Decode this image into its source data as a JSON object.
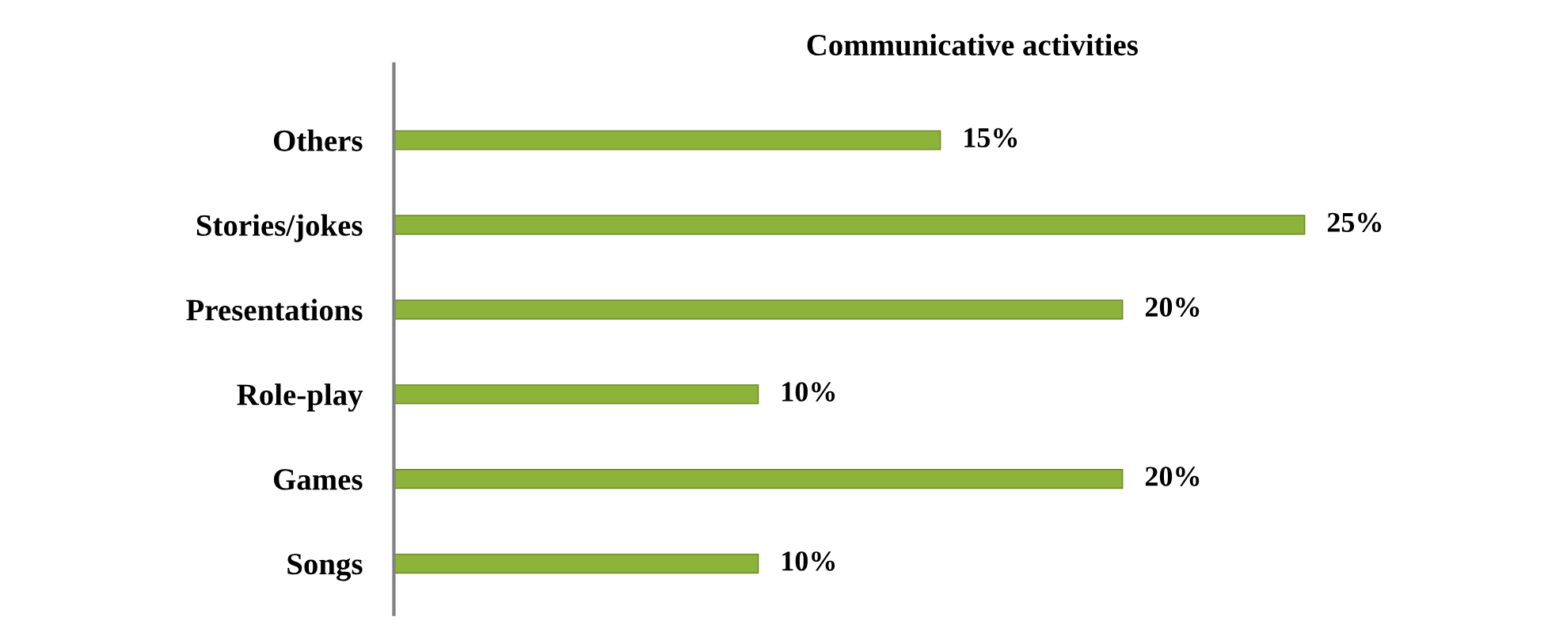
{
  "chart_data": {
    "type": "bar",
    "orientation": "horizontal",
    "title": "Communicative activities",
    "categories": [
      "Others",
      "Stories/jokes",
      "Presentations",
      "Role-play",
      "Games",
      "Songs"
    ],
    "values": [
      15,
      25,
      20,
      10,
      20,
      10
    ],
    "value_labels": [
      "15%",
      "25%",
      "20%",
      "10%",
      "20%",
      "10%"
    ],
    "color": "#8db33a",
    "grid": false,
    "legend": false
  }
}
